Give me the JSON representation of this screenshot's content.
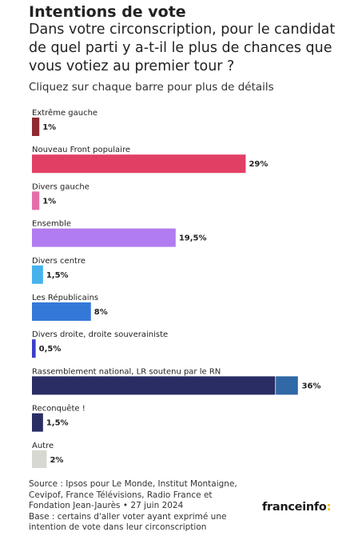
{
  "header": {
    "title": "Intentions de vote",
    "subtitle": "Dans votre circonscription, pour le candidat de quel parti y a-t-il le plus de chances que vous votiez au premier tour ?",
    "instruction": "Cliquez sur chaque barre pour plus de détails"
  },
  "chart_data": {
    "type": "bar",
    "orientation": "horizontal",
    "categories": [
      "Extrême gauche",
      "Nouveau Front populaire",
      "Divers gauche",
      "Ensemble",
      "Divers centre",
      "Les Républicains",
      "Divers droite, droite souverainiste",
      "Rassemblement national, LR soutenu par le RN",
      "Reconquête !",
      "Autre"
    ],
    "values": [
      1,
      29,
      1,
      19.5,
      1.5,
      8,
      0.5,
      36,
      1.5,
      2
    ],
    "value_labels": [
      "1%",
      "29%",
      "1%",
      "19,5%",
      "1,5%",
      "8%",
      "0,5%",
      "36%",
      "1,5%",
      "2%"
    ],
    "colors": [
      "#8f2a32",
      "#e23f64",
      "#e46fa8",
      "#b07cf0",
      "#46b2ec",
      "#3478d8",
      "#3b3ec8",
      "#2a2d63",
      "#2a2d63",
      "#d8d8d2"
    ],
    "segments": {
      "Rassemblement national, LR soutenu par le RN": [
        {
          "value": 33,
          "color": "#2a2d63"
        },
        {
          "value": 3,
          "color": "#3168a6"
        }
      ]
    },
    "title": "Intentions de vote",
    "xlabel": "",
    "ylabel": "",
    "xlim": [
      0,
      36
    ],
    "grid": false,
    "legend": "none"
  },
  "footer": {
    "source_lines": [
      "Source : Ipsos pour Le Monde, Institut Montaigne,",
      "Cevipof, France Télévisions, Radio France et",
      "Fondation Jean-Jaurès • 27 juin 2024",
      "Base : certains d'aller voter ayant exprimé une",
      "intention de vote dans leur circonscription"
    ]
  },
  "brand": {
    "name": "franceinfo",
    "suffix": ":"
  }
}
